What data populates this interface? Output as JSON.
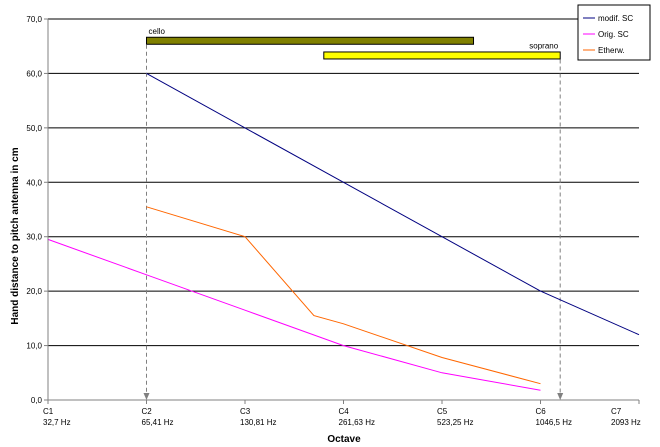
{
  "chart_data": {
    "type": "line",
    "title": "",
    "xlabel": "Octave",
    "ylabel": "Hand distance to pitch antenna in cm",
    "ylim": [
      0,
      70
    ],
    "y_ticks": [
      0,
      10,
      20,
      30,
      40,
      50,
      60,
      70
    ],
    "y_tick_labels": [
      "0,0",
      "10,0",
      "20,0",
      "30,0",
      "40,0",
      "50,0",
      "60,0",
      "70,0"
    ],
    "x": [
      0,
      1,
      2,
      3,
      4,
      5,
      6
    ],
    "xlim": [
      0,
      6
    ],
    "x_ticks": [
      {
        "x": 0,
        "note": "C1",
        "freq": "32,7 Hz"
      },
      {
        "x": 1,
        "note": "C2",
        "freq": "65,41 Hz"
      },
      {
        "x": 2,
        "note": "C3",
        "freq": "130,81 Hz"
      },
      {
        "x": 3,
        "note": "C4",
        "freq": "261,63 Hz"
      },
      {
        "x": 4,
        "note": "C5",
        "freq": "523,25 Hz"
      },
      {
        "x": 5,
        "note": "C6",
        "freq": "1046,5 Hz"
      },
      {
        "x": 6,
        "note": "C7",
        "freq": "2093 Hz"
      }
    ],
    "grid": true,
    "legend": "top-right",
    "series": [
      {
        "name": "modif. SC",
        "color": "#000080",
        "points": [
          [
            1,
            60
          ],
          [
            2,
            50
          ],
          [
            3,
            40
          ],
          [
            4,
            30
          ],
          [
            5,
            20
          ],
          [
            6,
            12
          ]
        ]
      },
      {
        "name": "Orig. SC",
        "color": "#ff00ff",
        "points": [
          [
            0,
            29.5
          ],
          [
            1,
            23
          ],
          [
            2,
            16.5
          ],
          [
            3,
            10
          ],
          [
            4,
            5
          ],
          [
            5,
            1.8
          ]
        ]
      },
      {
        "name": "Etherw.",
        "color": "#ff6600",
        "points": [
          [
            1,
            35.5
          ],
          [
            2,
            30
          ],
          [
            2.7,
            15.5
          ],
          [
            3,
            14
          ],
          [
            4,
            7.8
          ],
          [
            5,
            3
          ]
        ]
      }
    ],
    "ranges": [
      {
        "label": "cello",
        "x_start": 1.0,
        "x_end": 4.32,
        "y": 66,
        "fill": "#808000"
      },
      {
        "label": "soprano",
        "x_start": 2.8,
        "x_end": 5.2,
        "y": 63.3,
        "fill": "#ffff00"
      }
    ],
    "markers": [
      {
        "x": 1,
        "y_from": 66,
        "y_to": 0
      },
      {
        "x": 5.2,
        "y_from": 63.3,
        "y_to": 0
      }
    ]
  }
}
